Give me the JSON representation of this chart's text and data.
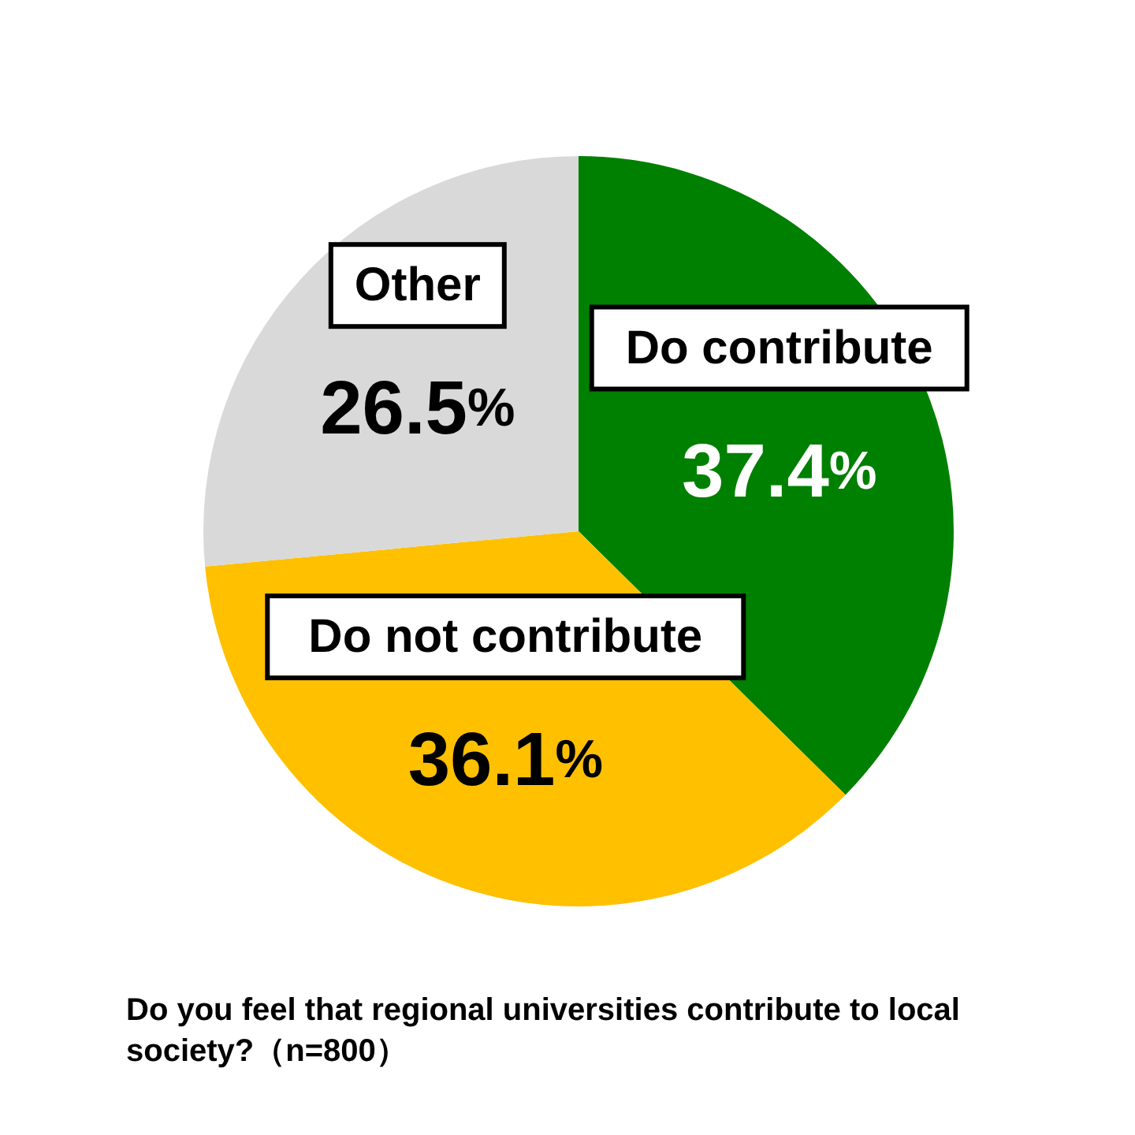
{
  "chart_data": {
    "type": "pie",
    "title": "Do you feel that regional universities contribute to local society?（n=800）",
    "categories": [
      "Do contribute",
      "Do not contribute",
      "Other"
    ],
    "values": [
      37.4,
      36.1,
      26.5
    ],
    "colors": [
      "#008000",
      "#ffc000",
      "#d9d9d9"
    ],
    "value_labels": [
      "37.4%",
      "36.1%",
      "26.5%"
    ],
    "legend": false
  }
}
